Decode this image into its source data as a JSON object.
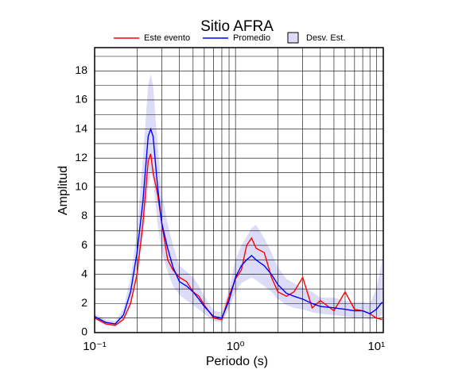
{
  "chart_data": {
    "type": "line",
    "title": "Sitio AFRA",
    "xlabel": "Periodo (s)",
    "ylabel": "Amplitud",
    "xscale": "log",
    "grid": true,
    "xlim": [
      0.1,
      11.2
    ],
    "ylim": [
      0,
      19.6
    ],
    "xticks": [
      {
        "value": 0.1,
        "label": "10⁻¹"
      },
      {
        "value": 1,
        "label": "10⁰"
      },
      {
        "value": 10,
        "label": "10¹"
      }
    ],
    "x_minor_ticks": [
      0.2,
      0.3,
      0.4,
      0.5,
      0.6,
      0.7,
      0.8,
      0.9,
      2,
      3,
      4,
      5,
      6,
      7,
      8,
      9
    ],
    "yticks": [
      0,
      2,
      4,
      6,
      8,
      10,
      12,
      14,
      16,
      18
    ],
    "y_minor_ticks": [
      1,
      3,
      5,
      7,
      9,
      11,
      13,
      15,
      17,
      19
    ],
    "x": [
      0.1,
      0.12,
      0.14,
      0.16,
      0.18,
      0.2,
      0.22,
      0.24,
      0.25,
      0.26,
      0.28,
      0.3,
      0.33,
      0.36,
      0.4,
      0.45,
      0.5,
      0.55,
      0.6,
      0.7,
      0.8,
      0.9,
      1.0,
      1.1,
      1.2,
      1.3,
      1.4,
      1.6,
      1.8,
      2.0,
      2.3,
      2.6,
      3.0,
      3.5,
      4,
      5,
      6,
      7,
      8,
      9,
      10,
      11
    ],
    "band": {
      "name": "Desv. Est.",
      "color": "#dcdcf8",
      "edge": "#000000",
      "lower": [
        0.9,
        0.5,
        0.4,
        0.9,
        2.0,
        4.0,
        6.5,
        10.0,
        11.0,
        10.5,
        7.5,
        5.5,
        4.2,
        3.2,
        2.6,
        2.2,
        1.9,
        1.6,
        1.3,
        0.8,
        0.7,
        1.6,
        2.8,
        3.4,
        3.6,
        3.8,
        3.6,
        3.2,
        2.8,
        2.3,
        1.9,
        1.7,
        1.6,
        1.4,
        1.3,
        1.2,
        1.1,
        1.0,
        1.0,
        0.9,
        1.0,
        1.2
      ],
      "upper": [
        1.3,
        0.9,
        0.8,
        1.6,
        3.8,
        7.0,
        12.0,
        17.0,
        17.8,
        17.0,
        13.0,
        9.5,
        7.5,
        6.0,
        4.6,
        4.2,
        3.8,
        3.2,
        2.5,
        1.5,
        1.4,
        3.0,
        5.0,
        6.0,
        6.6,
        7.2,
        7.4,
        6.5,
        5.5,
        4.5,
        3.7,
        3.4,
        3.1,
        2.8,
        2.4,
        2.4,
        2.2,
        2.1,
        2.1,
        2.0,
        3.0,
        5.0
      ]
    },
    "series": [
      {
        "name": "Este evento",
        "color": "#ff0000",
        "values": [
          1.0,
          0.6,
          0.5,
          0.9,
          2.0,
          4.0,
          7.5,
          11.8,
          12.3,
          11.0,
          9.5,
          7.5,
          5.0,
          4.3,
          3.8,
          3.5,
          2.8,
          2.5,
          1.9,
          1.0,
          0.9,
          2.5,
          3.7,
          4.3,
          6.0,
          6.5,
          5.8,
          5.5,
          3.8,
          2.8,
          2.5,
          2.8,
          3.8,
          1.7,
          2.2,
          1.5,
          2.8,
          1.6,
          1.5,
          1.3,
          1.0,
          0.9
        ]
      },
      {
        "name": "Promedio",
        "color": "#0000ff",
        "values": [
          1.1,
          0.7,
          0.6,
          1.2,
          2.8,
          5.5,
          9.0,
          13.5,
          14.0,
          13.5,
          10.0,
          7.5,
          5.8,
          4.5,
          3.5,
          3.2,
          2.8,
          2.3,
          1.8,
          1.1,
          1.0,
          2.2,
          3.8,
          4.6,
          5.0,
          5.3,
          5.0,
          4.6,
          4.0,
          3.3,
          2.7,
          2.5,
          2.3,
          2.0,
          1.8,
          1.7,
          1.6,
          1.5,
          1.5,
          1.3,
          1.6,
          2.1
        ]
      }
    ]
  }
}
